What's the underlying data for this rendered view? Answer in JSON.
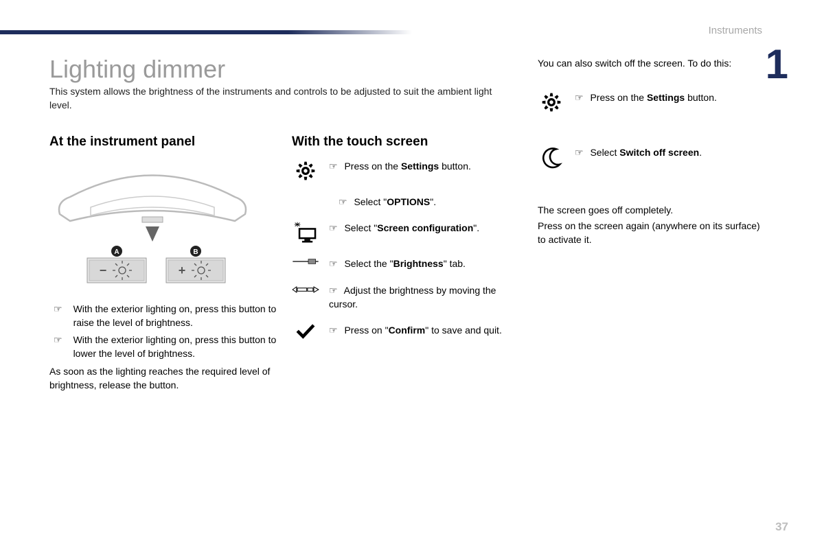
{
  "header": {
    "section": "Instruments",
    "chapter": "1",
    "title": "Lighting dimmer",
    "intro": "This system allows the brightness of the instruments and controls to be adjusted to suit the ambient light level."
  },
  "col1": {
    "heading": "At the instrument panel",
    "buttons": {
      "a_label": "A",
      "b_label": "B",
      "minus": "−",
      "plus": "+"
    },
    "bullets": [
      "With the exterior lighting on, press this button to raise the level of brightness.",
      "With the exterior lighting on, press this button to lower the level of brightness."
    ],
    "after": "As soon as the lighting reaches the required level of brightness, release the button."
  },
  "col2": {
    "heading": "With the touch screen",
    "steps": [
      {
        "icon": "gear",
        "pre": "Press on the ",
        "bold": "Settings",
        "post": " button."
      },
      {
        "icon": "none",
        "pre": "Select \"",
        "bold": "OPTIONS",
        "post": "\"."
      },
      {
        "icon": "monitor",
        "pre": "Select \"",
        "bold": "Screen configuration",
        "post": "\"."
      },
      {
        "icon": "slider",
        "pre": "Select the \"",
        "bold": "Brightness",
        "post": "\" tab."
      },
      {
        "icon": "arrows",
        "pre": "Adjust the brightness by moving the cursor.",
        "bold": "",
        "post": ""
      },
      {
        "icon": "check",
        "pre": "Press on \"",
        "bold": "Confirm",
        "post": "\" to save and quit."
      }
    ]
  },
  "col3": {
    "lead": "You can also switch off the screen. To do this:",
    "steps": [
      {
        "icon": "gear",
        "pre": "Press on the ",
        "bold": "Settings",
        "post": " button."
      },
      {
        "icon": "moon",
        "pre": "Select ",
        "bold": "Switch off screen",
        "post": "."
      }
    ],
    "after1": "The screen goes off completely.",
    "after2": "Press on the screen again (anywhere on its surface) to activate it."
  },
  "page": "37"
}
